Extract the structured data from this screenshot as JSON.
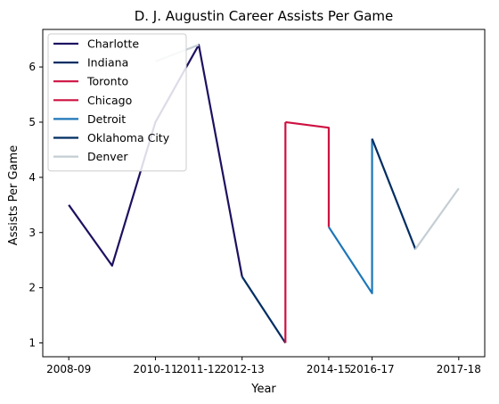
{
  "chart_data": {
    "type": "line",
    "title": "D. J. Augustin Career Assists Per Game",
    "xlabel": "Year",
    "ylabel": "Assists Per Game",
    "x_ticks": [
      "2008-09",
      "2010-11",
      "2011-12",
      "2012-13",
      "2014-15",
      "2016-17",
      "2017-18"
    ],
    "x_tick_positions": [
      0,
      2,
      3,
      4,
      6,
      7,
      9
    ],
    "xlim": [
      -0.6,
      9.6
    ],
    "y_ticks": [
      1,
      2,
      3,
      4,
      5,
      6
    ],
    "ylim": [
      0.75,
      6.68
    ],
    "grid": false,
    "legend_position": "top-left",
    "series": [
      {
        "name": "Charlotte",
        "color": "#1d1160",
        "x": [
          0,
          1,
          2,
          3,
          4
        ],
        "y": [
          3.5,
          2.4,
          5.0,
          6.4,
          2.2
        ]
      },
      {
        "name": "Indiana",
        "color": "#002d62",
        "x": [
          4,
          5
        ],
        "y": [
          2.2,
          1.0
        ]
      },
      {
        "name": "Toronto",
        "color": "#ce1141",
        "x": [
          5,
          5
        ],
        "y": [
          1.0,
          5.0
        ]
      },
      {
        "name": "Chicago",
        "color": "#ce1141",
        "x": [
          5,
          6,
          6
        ],
        "y": [
          5.0,
          4.9,
          3.1
        ]
      },
      {
        "name": "Detroit",
        "color": "#1d76b8",
        "x": [
          6,
          7,
          7
        ],
        "y": [
          3.1,
          1.9,
          4.7
        ]
      },
      {
        "name": "Oklahoma City",
        "color": "#002d62",
        "x": [
          7,
          8
        ],
        "y": [
          4.7,
          2.7
        ]
      },
      {
        "name": "Denver",
        "color": "#c4ced4",
        "x": [
          2,
          3
        ],
        "y": [
          6.1,
          6.4
        ]
      },
      {
        "name": "Denver",
        "color": "#c4ced4",
        "x": [
          8,
          9
        ],
        "y": [
          2.7,
          3.8
        ]
      }
    ]
  }
}
